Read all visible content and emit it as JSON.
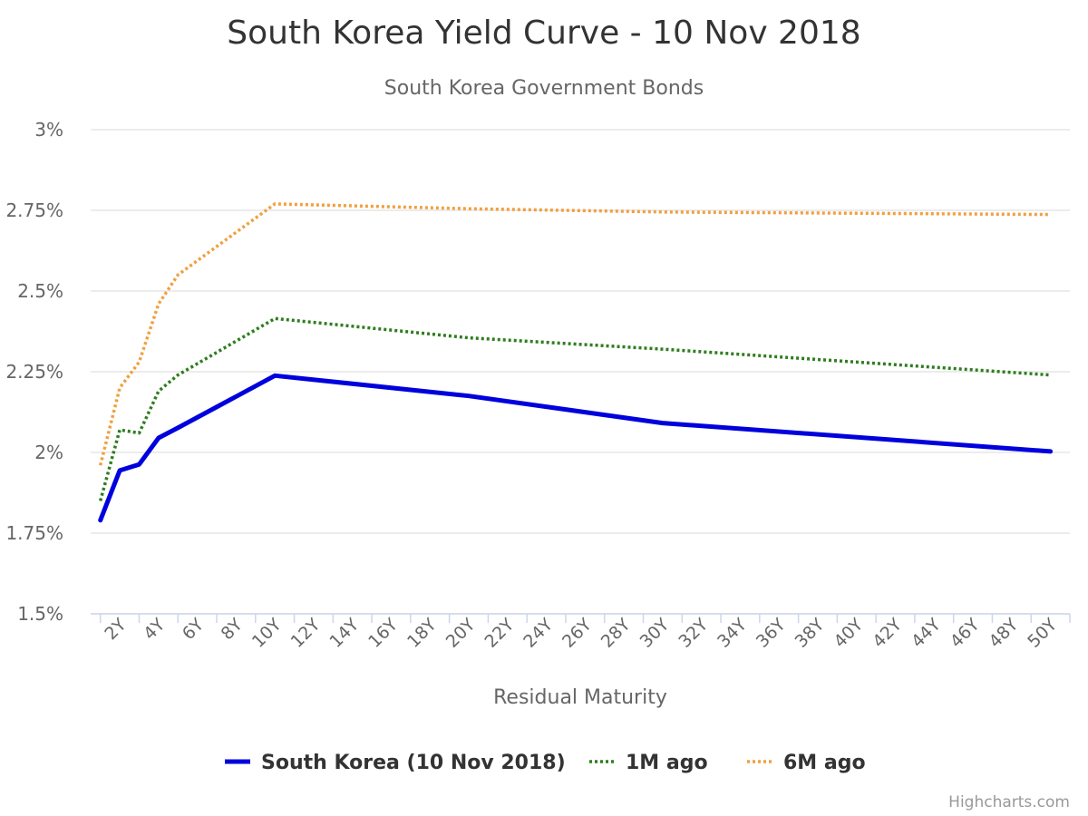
{
  "chart_data": {
    "type": "line",
    "title": "South Korea Yield Curve - 10 Nov 2018",
    "subtitle": "South Korea Government Bonds",
    "xlabel": "Residual Maturity",
    "ylabel": "",
    "x_ticks": [
      "2Y",
      "4Y",
      "6Y",
      "8Y",
      "10Y",
      "12Y",
      "14Y",
      "16Y",
      "18Y",
      "20Y",
      "22Y",
      "24Y",
      "26Y",
      "28Y",
      "30Y",
      "32Y",
      "34Y",
      "36Y",
      "38Y",
      "40Y",
      "42Y",
      "44Y",
      "46Y",
      "48Y",
      "50Y"
    ],
    "x_range": [
      0.5,
      51
    ],
    "y_ticks": [
      "1.5%",
      "1.75%",
      "2%",
      "2.25%",
      "2.5%",
      "2.75%",
      "3%"
    ],
    "y_tick_values": [
      1.5,
      1.75,
      2.0,
      2.25,
      2.5,
      2.75,
      3.0
    ],
    "ylim": [
      1.5,
      3.0
    ],
    "grid": "horizontal",
    "legend_position": "bottom-center",
    "series": [
      {
        "name": "South Korea (10 Nov 2018)",
        "color": "#0000dd",
        "style": "solid",
        "points": [
          {
            "x": 1,
            "y": 1.79
          },
          {
            "x": 2,
            "y": 1.944
          },
          {
            "x": 3,
            "y": 1.963
          },
          {
            "x": 4,
            "y": 2.045
          },
          {
            "x": 5,
            "y": 2.076
          },
          {
            "x": 10,
            "y": 2.238
          },
          {
            "x": 20,
            "y": 2.175
          },
          {
            "x": 30,
            "y": 2.091
          },
          {
            "x": 50,
            "y": 2.003
          }
        ]
      },
      {
        "name": "1M ago",
        "color": "#2e7d1f",
        "style": "dotted",
        "points": [
          {
            "x": 1,
            "y": 1.85
          },
          {
            "x": 2,
            "y": 2.07
          },
          {
            "x": 3,
            "y": 2.06
          },
          {
            "x": 4,
            "y": 2.19
          },
          {
            "x": 5,
            "y": 2.24
          },
          {
            "x": 10,
            "y": 2.415
          },
          {
            "x": 20,
            "y": 2.355
          },
          {
            "x": 30,
            "y": 2.32
          },
          {
            "x": 50,
            "y": 2.24
          }
        ]
      },
      {
        "name": "6M ago",
        "color": "#f0a040",
        "style": "dotted",
        "points": [
          {
            "x": 1,
            "y": 1.96
          },
          {
            "x": 2,
            "y": 2.2
          },
          {
            "x": 3,
            "y": 2.28
          },
          {
            "x": 4,
            "y": 2.46
          },
          {
            "x": 5,
            "y": 2.55
          },
          {
            "x": 10,
            "y": 2.77
          },
          {
            "x": 20,
            "y": 2.755
          },
          {
            "x": 30,
            "y": 2.745
          },
          {
            "x": 50,
            "y": 2.737
          }
        ]
      }
    ]
  },
  "credits": "Highcharts.com",
  "colors": {
    "title": "#333333",
    "subtitle": "#666666",
    "axis_text": "#666666",
    "grid": "#e6e6e6",
    "axis_line": "#ccd6eb",
    "credits": "#999999"
  }
}
